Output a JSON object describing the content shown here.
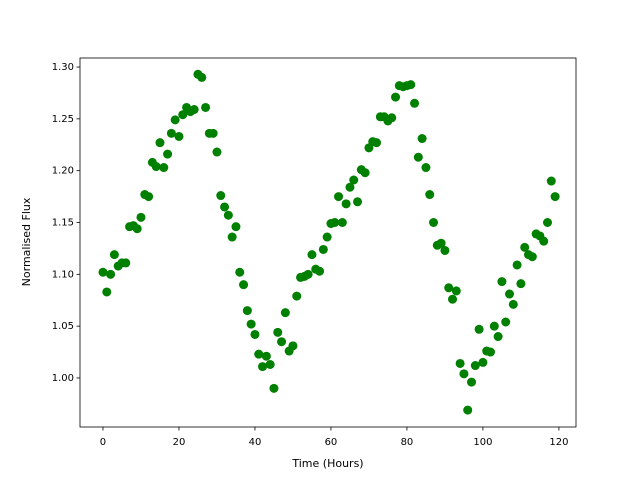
{
  "chart_data": {
    "type": "scatter",
    "xlabel": "Time (Hours)",
    "ylabel": "Normalised Flux",
    "color": "#008000",
    "x": [
      0,
      1,
      2,
      3,
      4,
      5,
      6,
      7,
      8,
      9,
      10,
      11,
      12,
      13,
      14,
      15,
      16,
      17,
      18,
      19,
      20,
      21,
      22,
      23,
      24,
      25,
      26,
      27,
      28,
      29,
      30,
      31,
      32,
      33,
      34,
      35,
      36,
      37,
      38,
      39,
      40,
      41,
      42,
      43,
      44,
      45,
      46,
      47,
      48,
      49,
      50,
      51,
      52,
      53,
      54,
      55,
      56,
      57,
      58,
      59,
      60,
      61,
      62,
      63,
      64,
      65,
      66,
      67,
      68,
      69,
      70,
      71,
      72,
      73,
      74,
      75,
      76,
      77,
      78,
      79,
      80,
      81,
      82,
      83,
      84,
      85,
      86,
      87,
      88,
      89,
      90,
      91,
      92,
      93,
      94,
      95,
      96,
      97,
      98,
      99,
      100,
      101,
      102,
      103,
      104,
      105,
      106,
      107,
      108,
      109,
      110,
      111,
      112,
      113,
      114,
      115,
      116,
      117,
      118,
      119
    ],
    "values": [
      1.102,
      1.083,
      1.1,
      1.119,
      1.108,
      1.111,
      1.111,
      1.146,
      1.147,
      1.144,
      1.155,
      1.177,
      1.175,
      1.208,
      1.204,
      1.227,
      1.203,
      1.216,
      1.236,
      1.249,
      1.233,
      1.254,
      1.261,
      1.257,
      1.259,
      1.293,
      1.29,
      1.261,
      1.236,
      1.236,
      1.218,
      1.176,
      1.165,
      1.157,
      1.136,
      1.146,
      1.102,
      1.09,
      1.065,
      1.052,
      1.042,
      1.023,
      1.011,
      1.021,
      1.013,
      0.99,
      1.044,
      1.035,
      1.063,
      1.026,
      1.031,
      1.079,
      1.097,
      1.098,
      1.1,
      1.119,
      1.105,
      1.103,
      1.124,
      1.136,
      1.149,
      1.15,
      1.175,
      1.15,
      1.168,
      1.184,
      1.191,
      1.17,
      1.201,
      1.198,
      1.222,
      1.228,
      1.227,
      1.252,
      1.252,
      1.248,
      1.251,
      1.271,
      1.282,
      1.281,
      1.282,
      1.283,
      1.265,
      1.213,
      1.231,
      1.203,
      1.177,
      1.15,
      1.128,
      1.13,
      1.123,
      1.087,
      1.076,
      1.084,
      1.014,
      1.004,
      0.969,
      0.996,
      1.012,
      1.047,
      1.015,
      1.026,
      1.025,
      1.05,
      1.04,
      1.093,
      1.054,
      1.081,
      1.071,
      1.109,
      1.091,
      1.126,
      1.119,
      1.117,
      1.139,
      1.137,
      1.132,
      1.15,
      1.19,
      1.175
    ],
    "xlim": [
      -6.05,
      124.5
    ],
    "ylim": [
      0.9527,
      1.3087
    ],
    "xticks": [
      0,
      20,
      40,
      60,
      80,
      100,
      120
    ],
    "yticks": [
      {
        "value": 1.0,
        "label": "1.00"
      },
      1.05,
      {
        "value": 1.1,
        "label": "1.10"
      },
      1.15,
      {
        "value": 1.2,
        "label": "1.20"
      },
      1.25,
      {
        "value": 1.3,
        "label": "1.30"
      }
    ]
  }
}
